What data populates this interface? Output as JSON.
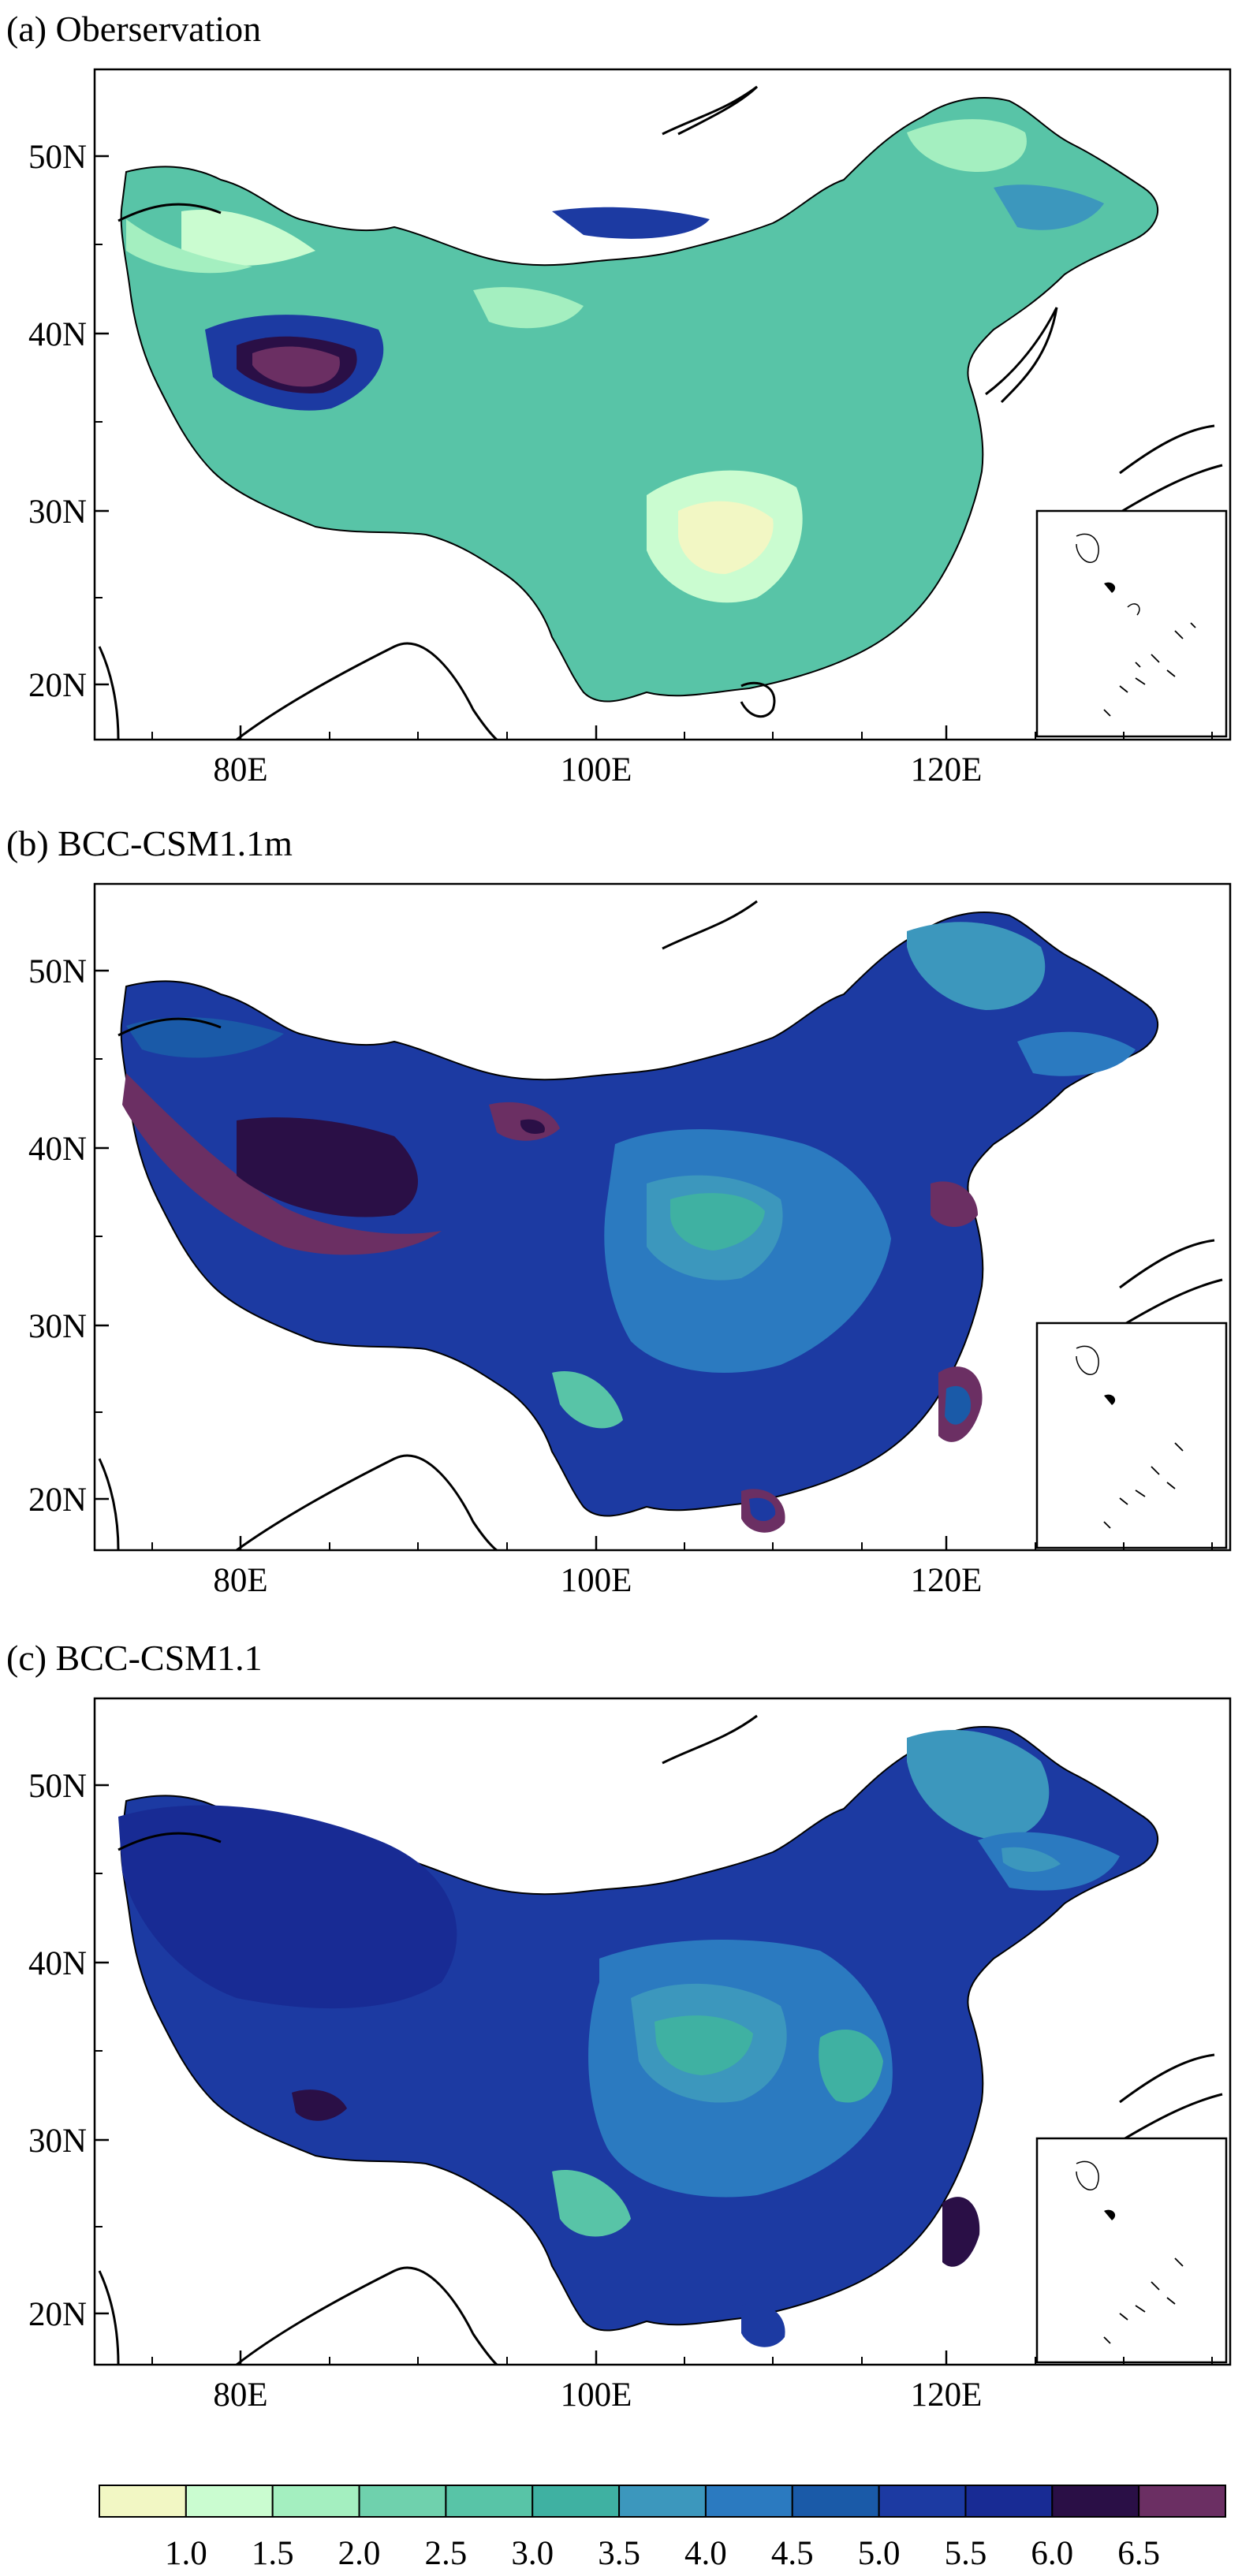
{
  "panels": [
    {
      "id": "a",
      "title": "(a) Oberservation"
    },
    {
      "id": "b",
      "title": "(b) BCC-CSM1.1m"
    },
    {
      "id": "c",
      "title": "(c) BCC-CSM1.1"
    }
  ],
  "axes": {
    "lat_ticks": [
      "20N",
      "30N",
      "40N",
      "50N"
    ],
    "lon_ticks": [
      "80E",
      "100E",
      "120E"
    ]
  },
  "colorbar": {
    "labels": [
      "1.0",
      "1.5",
      "2.0",
      "2.5",
      "3.0",
      "3.5",
      "4.0",
      "4.5",
      "5.0",
      "5.5",
      "6.0",
      "6.5"
    ],
    "colors": [
      "#f2f7c4",
      "#cafcd0",
      "#a4efc0",
      "#6fd1ad",
      "#58c4a7",
      "#3fb1a2",
      "#3c97bd",
      "#2b7ac0",
      "#1a5aa8",
      "#1c3aa2",
      "#182b94",
      "#2a0f46",
      "#6b2f63"
    ]
  },
  "map_colors": {
    "land_low": "#a4efc0",
    "land_mid": "#58c4a7",
    "land_blue": "#2b7ac0",
    "land_dark": "#1c3aa2",
    "land_purple": "#6b2f63",
    "coast": "#000000"
  }
}
